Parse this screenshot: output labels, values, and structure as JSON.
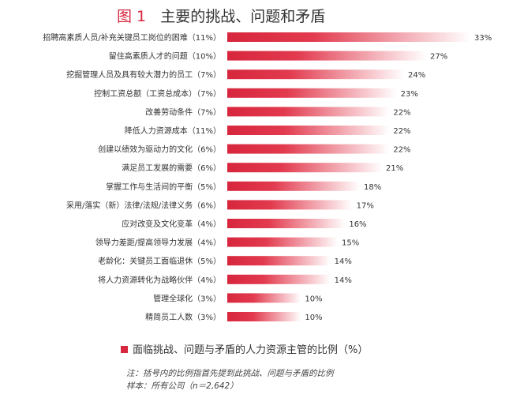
{
  "figure": {
    "label": "图 1",
    "title": "主要的挑战、问题和矛盾"
  },
  "legend": {
    "label": "面临挑战、问题与矛盾的人力资源主管的比例（%）"
  },
  "notes": [
    "注：括号内的比例指首先提到此挑战、问题与矛盾的比例",
    "样本：所有公司（n＝2,642）"
  ],
  "colors": {
    "accent": "#d7263d",
    "bar_fade": "#ffffff"
  },
  "chart_data": {
    "type": "bar",
    "orientation": "horizontal",
    "categories": [
      "招聘高素质人员/补充关键员工岗位的困难（11%）",
      "留住高素质人才的问题（10%）",
      "挖掘管理人员及具有较大潜力的员工（7%）",
      "控制工资总额（工资总成本）（7%）",
      "改善劳动条件（7%）",
      "降低人力资源成本（11%）",
      "创建以绩效为驱动力的文化（6%）",
      "满足员工发展的需要（6%）",
      "掌握工作与生活间的平衡（5%）",
      "采用/落实（新）法律/法规/法律义务（6%）",
      "应对改变及文化变革（4%）",
      "领导力差距/提高领导力发展（4%）",
      "老龄化：关键员工面临退休（5%）",
      "将人力资源转化为战略伙伴（4%）",
      "管理全球化（3%）",
      "精简员工人数（3%）"
    ],
    "values": [
      33,
      27,
      24,
      23,
      22,
      22,
      22,
      21,
      18,
      17,
      16,
      15,
      14,
      14,
      10,
      10
    ],
    "value_labels": [
      "33%",
      "27%",
      "24%",
      "23%",
      "22%",
      "22%",
      "22%",
      "21%",
      "18%",
      "17%",
      "16%",
      "15%",
      "14%",
      "14%",
      "10%",
      "10%"
    ],
    "xlim": [
      0,
      33
    ],
    "grid": false
  }
}
